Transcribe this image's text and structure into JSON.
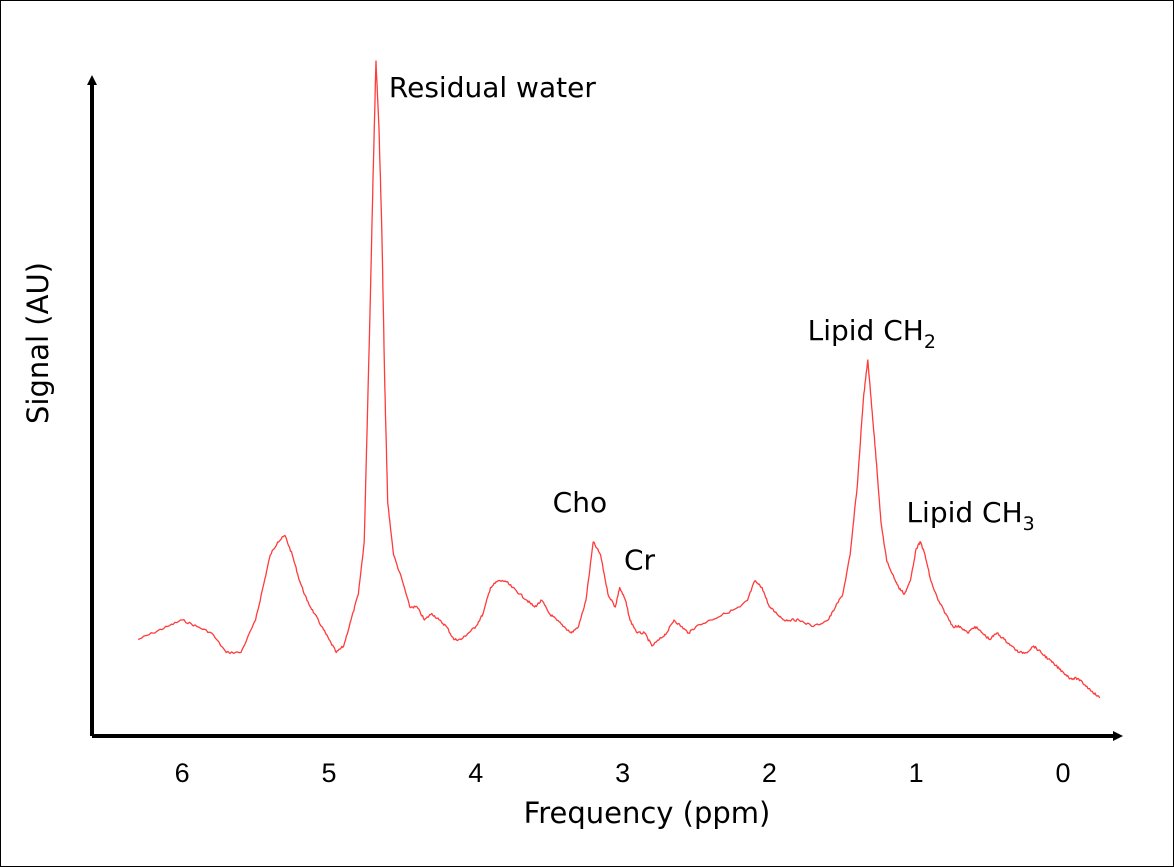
{
  "chart_data": {
    "type": "line",
    "xlabel": "Frequency (ppm)",
    "ylabel": "Signal (AU)",
    "xlim": [
      6.7,
      -0.5
    ],
    "ylim": [
      0,
      100
    ],
    "x_reversed": true,
    "xticks": [
      6,
      5,
      4,
      3,
      2,
      1,
      0
    ],
    "grid": false,
    "colors": {
      "line": "#ff3b3b",
      "axis": "#000000"
    },
    "series": [
      {
        "x": [
          6.3,
          6.2,
          6.1,
          6.0,
          5.9,
          5.8,
          5.7,
          5.6,
          5.5,
          5.45,
          5.4,
          5.35,
          5.3,
          5.25,
          5.2,
          5.15,
          5.1,
          5.05,
          5.0,
          4.95,
          4.9,
          4.85,
          4.8,
          4.76,
          4.72,
          4.7,
          4.68,
          4.66,
          4.64,
          4.62,
          4.6,
          4.56,
          4.5,
          4.45,
          4.4,
          4.35,
          4.3,
          4.25,
          4.2,
          4.15,
          4.1,
          4.05,
          4.0,
          3.95,
          3.9,
          3.85,
          3.8,
          3.75,
          3.7,
          3.65,
          3.6,
          3.55,
          3.5,
          3.45,
          3.4,
          3.35,
          3.3,
          3.25,
          3.2,
          3.15,
          3.1,
          3.05,
          3.02,
          2.98,
          2.95,
          2.9,
          2.85,
          2.8,
          2.75,
          2.7,
          2.65,
          2.6,
          2.55,
          2.5,
          2.4,
          2.3,
          2.2,
          2.15,
          2.1,
          2.05,
          2.0,
          1.95,
          1.9,
          1.85,
          1.8,
          1.7,
          1.6,
          1.55,
          1.5,
          1.45,
          1.4,
          1.36,
          1.33,
          1.3,
          1.27,
          1.24,
          1.2,
          1.16,
          1.12,
          1.08,
          1.04,
          1.0,
          0.97,
          0.94,
          0.9,
          0.85,
          0.8,
          0.75,
          0.7,
          0.65,
          0.6,
          0.55,
          0.5,
          0.45,
          0.4,
          0.35,
          0.3,
          0.25,
          0.2,
          0.15,
          0.1,
          0.05,
          0.0,
          -0.05,
          -0.1,
          -0.15,
          -0.2,
          -0.25
        ],
        "y": [
          9,
          10,
          11,
          12,
          11,
          10,
          7,
          7,
          12,
          17,
          22,
          24,
          25,
          22,
          18,
          15,
          13,
          11,
          9,
          7,
          8,
          12,
          16,
          24,
          60,
          80,
          98,
          88,
          72,
          48,
          30,
          22,
          18,
          14,
          14,
          12,
          13,
          12,
          11,
          9,
          9,
          10,
          11,
          13,
          17,
          18,
          18,
          17,
          16,
          15,
          14,
          15,
          13,
          12,
          11,
          10,
          11,
          15,
          24,
          22,
          16,
          14,
          17,
          15,
          12,
          10,
          10,
          8,
          9,
          10,
          12,
          11,
          10,
          11,
          12,
          13,
          14,
          15,
          18,
          17,
          14,
          13,
          12,
          12,
          12,
          11,
          12,
          14,
          16,
          22,
          33,
          46,
          52,
          44,
          36,
          27,
          21,
          19,
          17,
          16,
          18,
          23,
          24,
          22,
          18,
          15,
          13,
          11,
          11,
          10,
          11,
          10,
          9,
          10,
          9,
          8,
          7,
          7,
          8,
          7,
          6,
          5,
          4,
          3,
          3,
          2,
          1,
          0
        ]
      }
    ],
    "annotations": [
      {
        "text": "Residual water",
        "x": 4.66,
        "y": 98
      },
      {
        "text": "Cho",
        "x": 3.25,
        "y": 24
      },
      {
        "text": "Cr",
        "x": 2.98,
        "y": 17
      },
      {
        "text": "Lipid CH",
        "sub": "2",
        "x": 1.33,
        "y": 52
      },
      {
        "text": "Lipid CH",
        "sub": "3",
        "x": 0.97,
        "y": 24
      }
    ]
  }
}
